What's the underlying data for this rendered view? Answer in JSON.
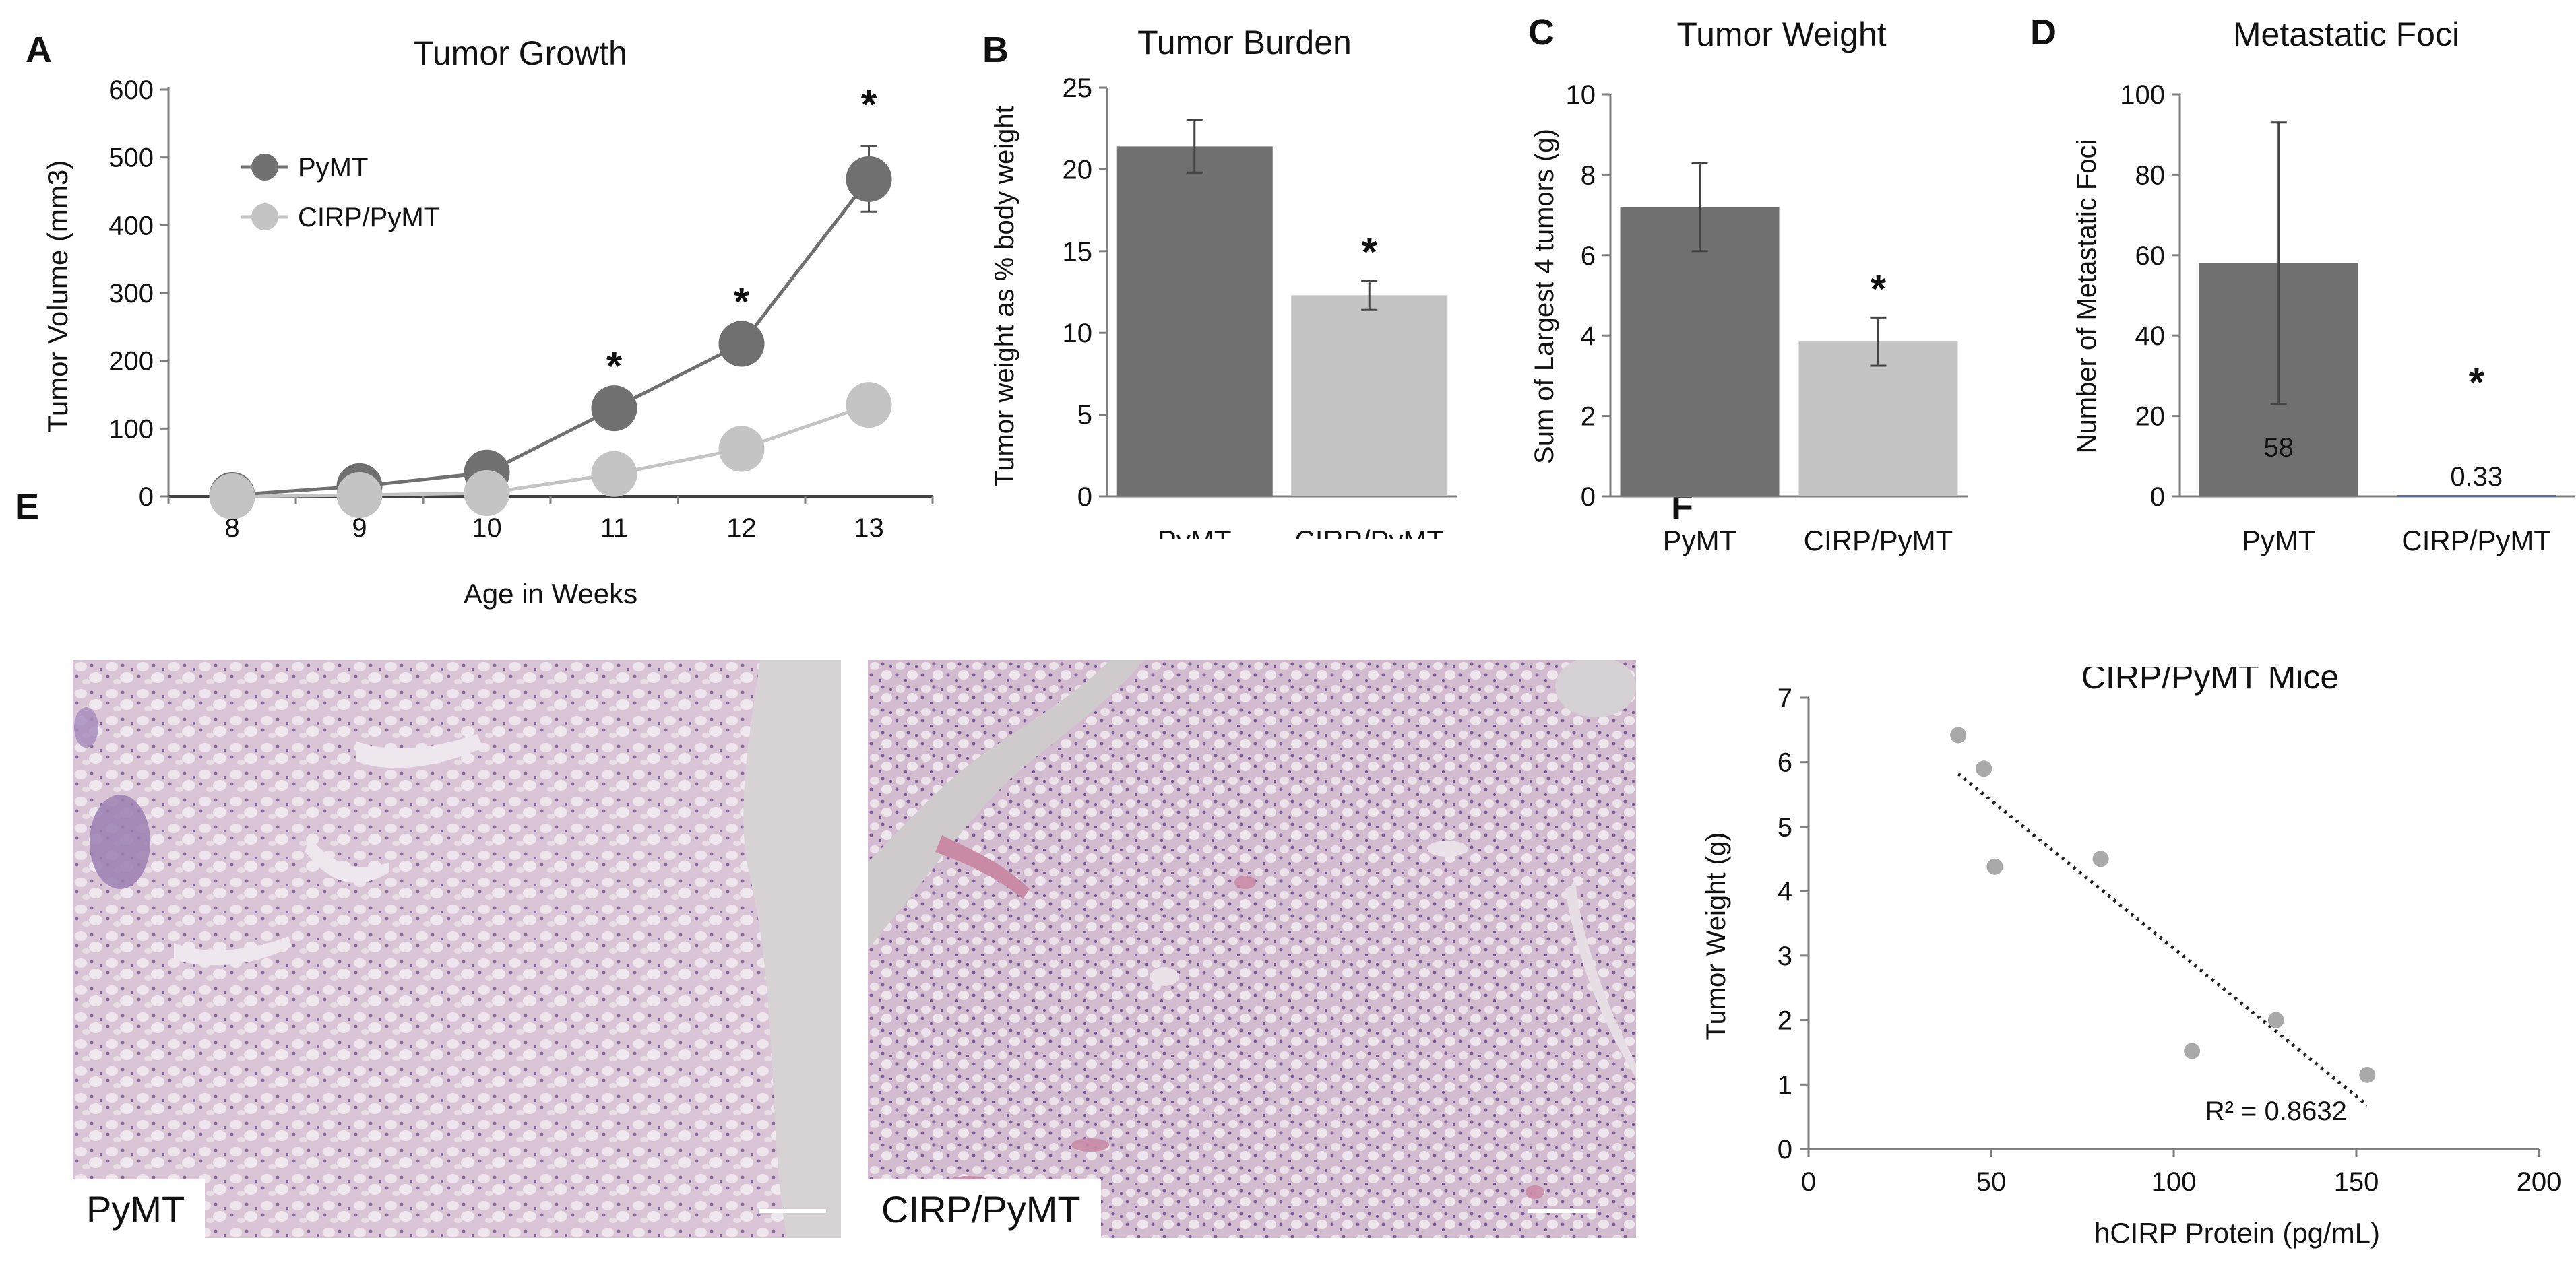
{
  "panels": {
    "A": "A",
    "B": "B",
    "C": "C",
    "D": "D",
    "E": "E",
    "F": "F"
  },
  "colors": {
    "pymt": "#707070",
    "cirp": "#c4c4c4",
    "axis": "#7f7f7f",
    "text": "#111111",
    "tissue_bg": "#d7c3d4",
    "tissue_alt": "#c9b2c9"
  },
  "chart_data": [
    {
      "id": "A",
      "type": "line",
      "title": "Tumor Growth",
      "xlabel": "Age in Weeks",
      "ylabel": "Tumor Volume (mm3)",
      "categories": [
        "8",
        "9",
        "10",
        "11",
        "12",
        "13"
      ],
      "ylim": [
        0,
        600
      ],
      "yticks": [
        0,
        100,
        200,
        300,
        400,
        500,
        600
      ],
      "legend_position": "top-left",
      "series": [
        {
          "name": "PyMT",
          "color": "#707070",
          "values": [
            2,
            15,
            35,
            130,
            225,
            468
          ],
          "errors": [
            0,
            0,
            0,
            0,
            0,
            48
          ]
        },
        {
          "name": "CIRP/PyMT",
          "color": "#c4c4c4",
          "values": [
            0,
            2,
            5,
            33,
            70,
            135
          ],
          "errors": [
            0,
            0,
            0,
            0,
            0,
            0
          ]
        }
      ],
      "significance": [
        {
          "category": "11",
          "mark": "*"
        },
        {
          "category": "12",
          "mark": "*"
        },
        {
          "category": "13",
          "mark": "*"
        }
      ]
    },
    {
      "id": "B",
      "type": "bar",
      "title": "Tumor Burden",
      "xlabel": "",
      "ylabel": "Tumor weight as % body weight",
      "categories": [
        "PyMT",
        "CIRP/PyMT"
      ],
      "values": [
        21.4,
        12.3
      ],
      "errors": [
        1.6,
        0.9
      ],
      "ylim": [
        0,
        25
      ],
      "yticks": [
        0,
        5,
        10,
        15,
        20,
        25
      ],
      "significance": [
        {
          "category": "CIRP/PyMT",
          "mark": "*"
        }
      ]
    },
    {
      "id": "C",
      "type": "bar",
      "title": "Tumor Weight",
      "xlabel": "",
      "ylabel": "Sum of Largest 4 tumors (g)",
      "categories": [
        "PyMT",
        "CIRP/PyMT"
      ],
      "values": [
        7.2,
        3.85
      ],
      "errors": [
        1.1,
        0.6
      ],
      "ylim": [
        0,
        10
      ],
      "yticks": [
        0,
        2,
        4,
        6,
        8,
        10
      ],
      "significance": [
        {
          "category": "CIRP/PyMT",
          "mark": "*"
        }
      ]
    },
    {
      "id": "D",
      "type": "bar",
      "title": "Metastatic Foci",
      "xlabel": "",
      "ylabel": "Number of Metastatic Foci",
      "categories": [
        "PyMT",
        "CIRP/PyMT"
      ],
      "values": [
        58,
        0.33
      ],
      "errors": [
        35,
        0
      ],
      "data_labels": [
        "58",
        "0.33"
      ],
      "ylim": [
        0,
        100
      ],
      "yticks": [
        0,
        20,
        40,
        60,
        80,
        100
      ],
      "significance": [
        {
          "category": "CIRP/PyMT",
          "mark": "*"
        }
      ]
    },
    {
      "id": "F",
      "type": "scatter",
      "title": "CIRP/PyMT Mice",
      "xlabel": "hCIRP Protein (pg/mL)",
      "ylabel": "Tumor Weight (g)",
      "x": [
        41,
        48,
        51,
        80,
        105,
        128,
        153
      ],
      "y": [
        6.42,
        5.9,
        4.38,
        4.5,
        1.52,
        2.0,
        1.15
      ],
      "xlim": [
        0,
        200
      ],
      "xticks": [
        0,
        50,
        100,
        150,
        200
      ],
      "ylim": [
        0,
        7
      ],
      "yticks": [
        0,
        1,
        2,
        3,
        4,
        5,
        6,
        7
      ],
      "trendline": {
        "x": [
          41,
          153
        ],
        "y": [
          5.82,
          0.68
        ]
      },
      "annotation": "R² = 0.8632"
    }
  ],
  "histology": [
    {
      "label": "PyMT"
    },
    {
      "label": "CIRP/PyMT"
    }
  ]
}
